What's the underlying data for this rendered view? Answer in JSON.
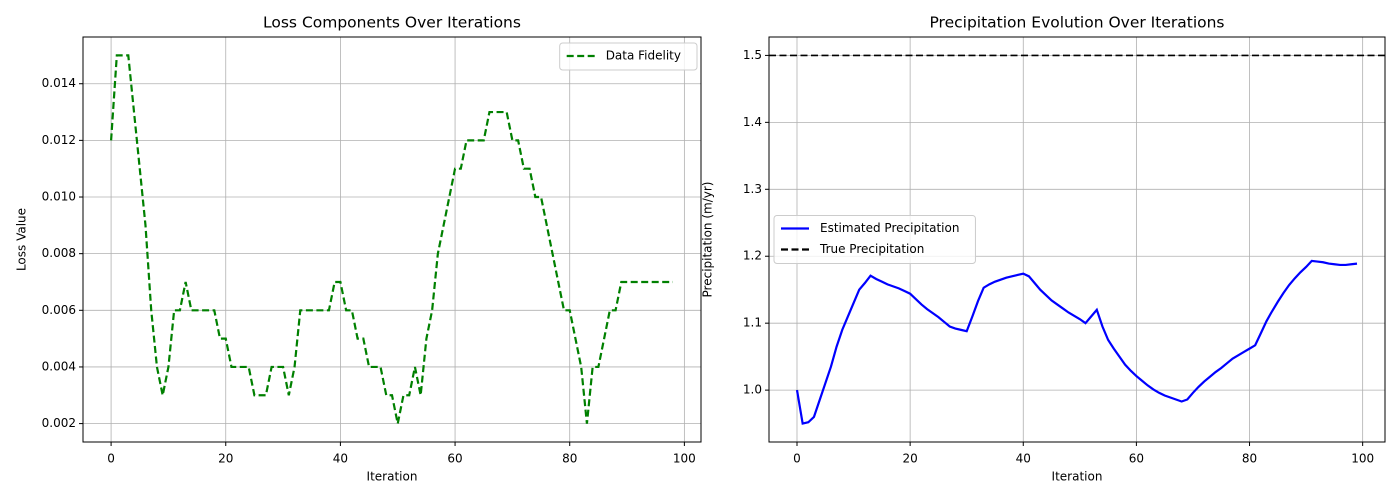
{
  "chart_data": [
    {
      "type": "line",
      "title": "Loss Components Over Iterations",
      "x_label": "Iteration",
      "y_label": "Loss Value",
      "x": [
        0,
        1,
        2,
        3,
        4,
        5,
        6,
        7,
        8,
        9,
        10,
        11,
        12,
        13,
        14,
        15,
        16,
        17,
        18,
        19,
        20,
        21,
        22,
        23,
        24,
        25,
        26,
        27,
        28,
        29,
        30,
        31,
        32,
        33,
        34,
        35,
        36,
        37,
        38,
        39,
        40,
        41,
        42,
        43,
        44,
        45,
        46,
        47,
        48,
        49,
        50,
        51,
        52,
        53,
        54,
        55,
        56,
        57,
        58,
        59,
        60,
        61,
        62,
        63,
        64,
        65,
        66,
        67,
        68,
        69,
        70,
        71,
        72,
        73,
        74,
        75,
        76,
        77,
        78,
        79,
        80,
        81,
        82,
        83,
        84,
        85,
        86,
        87,
        88,
        89,
        90,
        91,
        92,
        93,
        94,
        95,
        96,
        97,
        98
      ],
      "series": [
        {
          "name": "Data Fidelity",
          "color": "green",
          "dash": true,
          "values": [
            0.012,
            0.015,
            0.015,
            0.015,
            0.013,
            0.011,
            0.009,
            0.006,
            0.004,
            0.003,
            0.004,
            0.006,
            0.006,
            0.007,
            0.006,
            0.006,
            0.006,
            0.006,
            0.006,
            0.005,
            0.005,
            0.004,
            0.004,
            0.004,
            0.004,
            0.003,
            0.003,
            0.003,
            0.004,
            0.004,
            0.004,
            0.003,
            0.004,
            0.006,
            0.006,
            0.006,
            0.006,
            0.006,
            0.006,
            0.007,
            0.007,
            0.006,
            0.006,
            0.005,
            0.005,
            0.004,
            0.004,
            0.004,
            0.003,
            0.003,
            0.002,
            0.003,
            0.003,
            0.004,
            0.003,
            0.005,
            0.006,
            0.008,
            0.009,
            0.01,
            0.011,
            0.011,
            0.012,
            0.012,
            0.012,
            0.012,
            0.013,
            0.013,
            0.013,
            0.013,
            0.012,
            0.012,
            0.011,
            0.011,
            0.01,
            0.01,
            0.009,
            0.008,
            0.007,
            0.006,
            0.006,
            0.005,
            0.004,
            0.002,
            0.004,
            0.004,
            0.005,
            0.006,
            0.006,
            0.007,
            0.007,
            0.007,
            0.007,
            0.007,
            0.007,
            0.007,
            0.007,
            0.007,
            0.007
          ]
        }
      ],
      "xlim": [
        -4.9,
        102.9
      ],
      "xticks": [
        0,
        20,
        40,
        60,
        80,
        100
      ],
      "ylim": [
        0.00135,
        0.01565
      ],
      "yticks": [
        0.002,
        0.004,
        0.006,
        0.008,
        {
          "value": 0.01,
          "label": "0.010"
        },
        0.012,
        0.014
      ],
      "grid": true,
      "legend": "upper-right"
    },
    {
      "type": "line",
      "title": "Precipitation Evolution Over Iterations",
      "x_label": "Iteration",
      "y_label": "Precipitation (m/yr)",
      "x": [
        0,
        1,
        2,
        3,
        4,
        5,
        6,
        7,
        8,
        9,
        10,
        11,
        12,
        13,
        14,
        15,
        16,
        17,
        18,
        19,
        20,
        21,
        22,
        23,
        24,
        25,
        26,
        27,
        28,
        29,
        30,
        31,
        32,
        33,
        34,
        35,
        36,
        37,
        38,
        39,
        40,
        41,
        42,
        43,
        44,
        45,
        46,
        47,
        48,
        49,
        50,
        51,
        52,
        53,
        54,
        55,
        56,
        57,
        58,
        59,
        60,
        61,
        62,
        63,
        64,
        65,
        66,
        67,
        68,
        69,
        70,
        71,
        72,
        73,
        74,
        75,
        76,
        77,
        78,
        79,
        80,
        81,
        82,
        83,
        84,
        85,
        86,
        87,
        88,
        89,
        90,
        91,
        92,
        93,
        94,
        95,
        96,
        97,
        98,
        99
      ],
      "series": [
        {
          "name": "Estimated Precipitation",
          "color": "blue",
          "dash": false,
          "values": [
            1.0,
            0.95,
            0.952,
            0.96,
            0.985,
            1.01,
            1.035,
            1.065,
            1.09,
            1.11,
            1.13,
            1.15,
            1.16,
            1.171,
            1.166,
            1.162,
            1.158,
            1.155,
            1.152,
            1.148,
            1.144,
            1.136,
            1.128,
            1.121,
            1.115,
            1.109,
            1.102,
            1.095,
            1.092,
            1.09,
            1.088,
            1.11,
            1.133,
            1.153,
            1.158,
            1.162,
            1.165,
            1.168,
            1.17,
            1.172,
            1.174,
            1.17,
            1.16,
            1.15,
            1.142,
            1.134,
            1.128,
            1.122,
            1.116,
            1.111,
            1.106,
            1.1,
            1.11,
            1.12,
            1.095,
            1.075,
            1.062,
            1.05,
            1.038,
            1.029,
            1.021,
            1.014,
            1.007,
            1.001,
            0.996,
            0.992,
            0.989,
            0.986,
            0.983,
            0.986,
            0.996,
            1.005,
            1.013,
            1.02,
            1.027,
            1.033,
            1.04,
            1.047,
            1.052,
            1.057,
            1.062,
            1.067,
            1.085,
            1.103,
            1.118,
            1.132,
            1.145,
            1.157,
            1.167,
            1.176,
            1.184,
            1.193,
            1.192,
            1.191,
            1.189,
            1.188,
            1.187,
            1.187,
            1.188,
            1.189
          ]
        },
        {
          "name": "True Precipitation",
          "color": "black",
          "dash": true,
          "y": 1.5
        }
      ],
      "xlim": [
        -4.95,
        103.95
      ],
      "xticks": [
        0,
        20,
        40,
        60,
        80,
        100
      ],
      "ylim": [
        0.9225,
        1.5275
      ],
      "yticks": [
        {
          "value": 1,
          "label": "1.0"
        },
        1.1,
        1.2,
        1.3,
        1.4,
        1.5
      ],
      "grid": true,
      "legend": "center-left"
    }
  ]
}
